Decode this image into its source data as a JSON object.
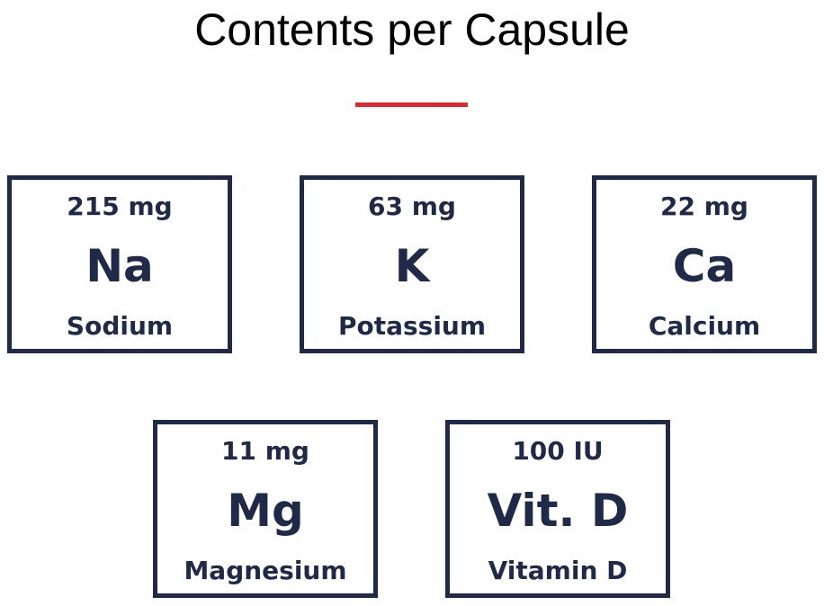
{
  "title": "Contents per Capsule",
  "accent_color": "#e0282e",
  "box_color": "#1e2a47",
  "items": [
    {
      "amount": "215 mg",
      "symbol": "Na",
      "name": "Sodium"
    },
    {
      "amount": "63 mg",
      "symbol": "K",
      "name": "Potassium"
    },
    {
      "amount": "22 mg",
      "symbol": "Ca",
      "name": "Calcium"
    },
    {
      "amount": "11 mg",
      "symbol": "Mg",
      "name": "Magnesium"
    },
    {
      "amount": "100 IU",
      "symbol": "Vit. D",
      "name": "Vitamin D"
    }
  ]
}
